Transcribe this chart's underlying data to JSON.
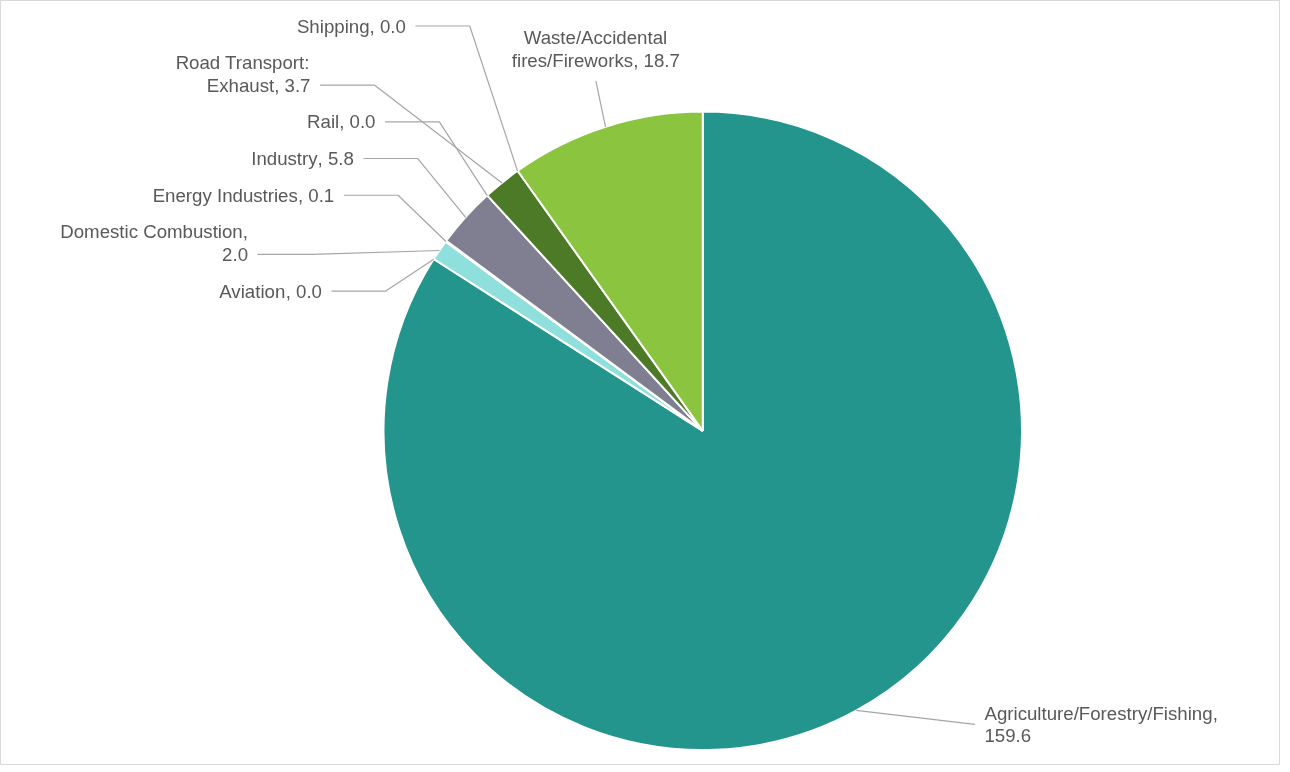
{
  "chart_data": {
    "type": "pie",
    "value_labels": [
      ", 159.6",
      ", 0.0",
      ", 2.0",
      ", 0.1",
      ", 5.8",
      ", 0.0",
      ", 3.7",
      ", 0.0",
      ", 18.7"
    ],
    "categories": [
      "Agriculture/Forestry/Fishing",
      "Aviation",
      "Domestic Combustion",
      "Energy Industries",
      "Industry",
      "Rail",
      "Road Transport: Exhaust",
      "Shipping",
      "Waste/Accidental fires/Fireworks"
    ],
    "values": [
      159.6,
      0.0,
      2.0,
      0.1,
      5.8,
      0.0,
      3.7,
      0.0,
      18.7
    ],
    "colors": [
      "#23958d",
      "#2e75b6",
      "#8fe0dc",
      "#5b9bd5",
      "#7f7f91",
      "#a5a5a5",
      "#4c7a26",
      "#70ad47",
      "#8bc540"
    ]
  }
}
